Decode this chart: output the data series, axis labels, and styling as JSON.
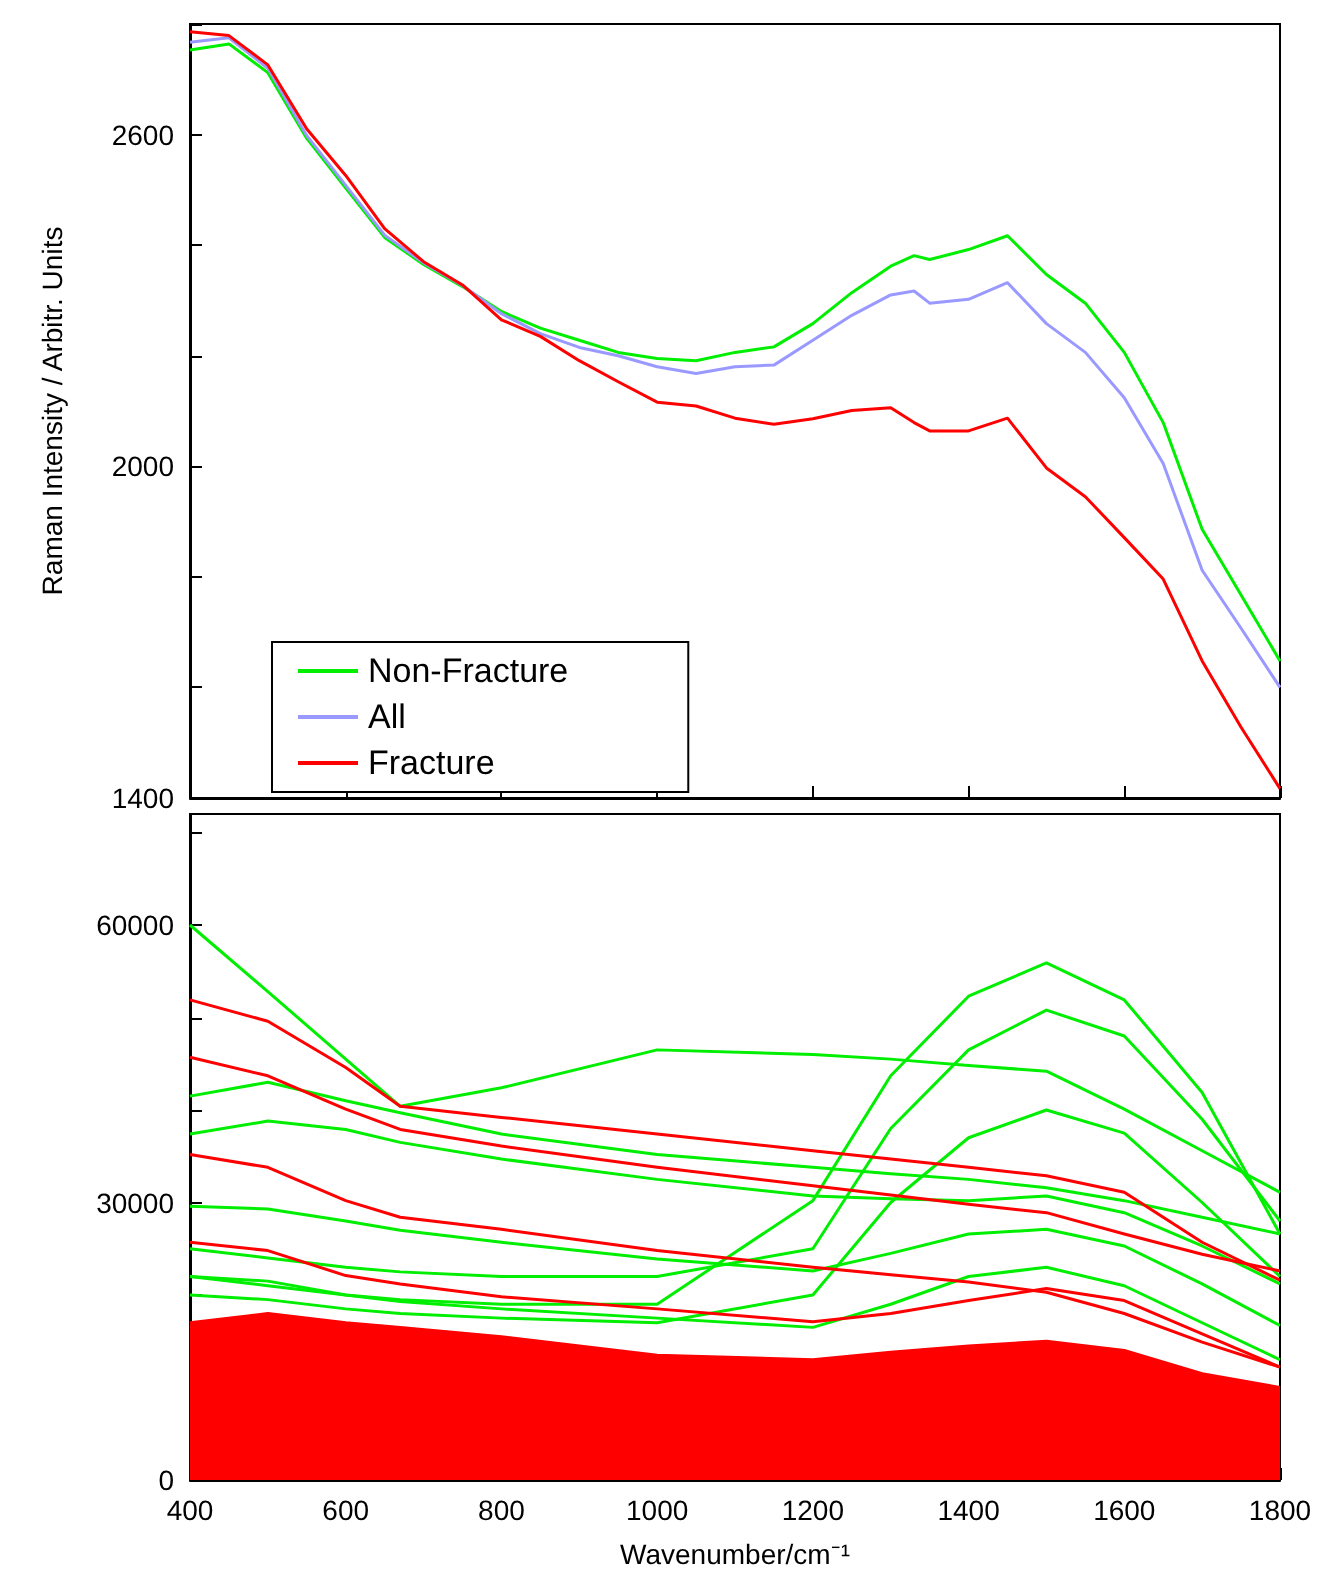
{
  "chart_data": [
    {
      "type": "line",
      "ylabel": "Raman Intensity / Arbitr. Units",
      "x": [
        400,
        450,
        500,
        550,
        600,
        650,
        700,
        750,
        800,
        850,
        900,
        950,
        1000,
        1050,
        1100,
        1150,
        1200,
        1250,
        1300,
        1330,
        1350,
        1400,
        1450,
        1500,
        1550,
        1600,
        1650,
        1700,
        1750,
        1800
      ],
      "xlim": [
        400,
        1800
      ],
      "xticks": [
        400,
        600,
        800,
        1000,
        1200,
        1400,
        1600,
        1800
      ],
      "ylim": [
        1400,
        2800
      ],
      "yticks": [
        1400,
        {
          "value": 1600,
          "label": null
        },
        {
          "value": 1800,
          "label": null
        },
        2000,
        {
          "value": 2200,
          "label": null
        },
        {
          "value": 2400,
          "label": null
        },
        2600,
        {
          "value": 2800,
          "label": null
        }
      ],
      "tick_labels": "y",
      "grid": false,
      "legend": "bottom left",
      "series": [
        {
          "name": "Non-Fracture",
          "color": "#00ee00",
          "values": [
            2753,
            2764,
            2712,
            2593,
            2503,
            2414,
            2365,
            2325,
            2280,
            2250,
            2228,
            2206,
            2195,
            2191,
            2206,
            2216,
            2258,
            2314,
            2362,
            2381,
            2374,
            2392,
            2417,
            2347,
            2295,
            2206,
            2079,
            1886,
            1767,
            1648
          ]
        },
        {
          "name": "All",
          "color": "#9999ff",
          "values": [
            2767,
            2775,
            2720,
            2598,
            2508,
            2418,
            2368,
            2327,
            2276,
            2240,
            2215,
            2200,
            2180,
            2168,
            2180,
            2183,
            2228,
            2273,
            2310,
            2317,
            2295,
            2302,
            2332,
            2258,
            2206,
            2124,
            2005,
            1812,
            1707,
            1600
          ]
        },
        {
          "name": "Fracture",
          "color": "#ff0000",
          "values": [
            2786,
            2779,
            2726,
            2610,
            2526,
            2430,
            2370,
            2328,
            2265,
            2235,
            2191,
            2153,
            2116,
            2109,
            2087,
            2076,
            2086,
            2101,
            2106,
            2079,
            2064,
            2064,
            2087,
            1997,
            1945,
            1871,
            1796,
            1648,
            1528,
            1417
          ]
        }
      ]
    },
    {
      "type": "line",
      "xlabel": "Wavenumber/cm⁻¹",
      "x": [
        400,
        500,
        600,
        670,
        800,
        1000,
        1200,
        1300,
        1400,
        1500,
        1600,
        1700,
        1800
      ],
      "xlim": [
        400,
        1800
      ],
      "xticks": [
        400,
        600,
        800,
        1000,
        1200,
        1400,
        1600,
        1800
      ],
      "ylim": [
        0,
        72000
      ],
      "yticks": [
        0,
        {
          "value": 10000,
          "label": null
        },
        {
          "value": 20000,
          "label": null
        },
        30000,
        {
          "value": 40000,
          "label": null
        },
        {
          "value": 50000,
          "label": null
        },
        60000,
        {
          "value": 70000,
          "label": null
        }
      ],
      "grid": false,
      "legend": false,
      "series": [
        {
          "type": "area",
          "color": "#ff0000",
          "values": [
            17000,
            18000,
            17000,
            16500,
            15500,
            13500,
            13000,
            13800,
            14500,
            15000,
            14000,
            11500,
            10000
          ]
        },
        {
          "color": "#00ee00",
          "values": [
            60000,
            52800,
            45500,
            40400,
            42400,
            46500,
            46000,
            45500,
            44800,
            44200,
            40100,
            35600,
            31100
          ]
        },
        {
          "color": "#00ee00",
          "values": [
            22000,
            21000,
            20000,
            19500,
            19000,
            19000,
            30200,
            43700,
            52300,
            55900,
            51900,
            41900,
            26600
          ]
        },
        {
          "color": "#00ee00",
          "values": [
            25000,
            24000,
            23000,
            22500,
            22000,
            22000,
            25000,
            38000,
            46500,
            50800,
            48000,
            39000,
            28000
          ]
        },
        {
          "color": "#00ee00",
          "values": [
            20000,
            19500,
            18500,
            18000,
            17500,
            17000,
            20000,
            30000,
            37000,
            40000,
            37500,
            30000,
            22000
          ]
        },
        {
          "color": "#00ee00",
          "values": [
            41500,
            43000,
            41000,
            39700,
            37400,
            35200,
            33800,
            33100,
            32500,
            31600,
            30200,
            28400,
            26600
          ]
        },
        {
          "color": "#00ee00",
          "values": [
            37400,
            38800,
            37900,
            36500,
            34700,
            32500,
            30700,
            30400,
            30200,
            30700,
            28900,
            25300,
            21200
          ]
        },
        {
          "color": "#00ee00",
          "values": [
            29600,
            29300,
            28000,
            27000,
            25700,
            23900,
            22600,
            24500,
            26600,
            27100,
            25300,
            21200,
            16700
          ]
        },
        {
          "color": "#00ee00",
          "values": [
            22000,
            21500,
            20000,
            19300,
            18500,
            17500,
            16500,
            19000,
            22000,
            23000,
            21000,
            17000,
            13000
          ]
        },
        {
          "color": "#ff0000",
          "values": [
            51900,
            49600,
            44600,
            40400,
            39200,
            37400,
            35600,
            34700,
            33800,
            32900,
            31100,
            25700,
            21600
          ]
        },
        {
          "color": "#ff0000",
          "values": [
            45700,
            43700,
            40100,
            37900,
            36100,
            33800,
            31800,
            30800,
            29800,
            28900,
            26600,
            24400,
            22600
          ]
        },
        {
          "color": "#ff0000",
          "values": [
            35200,
            33800,
            30200,
            28400,
            27100,
            24800,
            23000,
            22200,
            21400,
            20300,
            18000,
            14900,
            12200
          ]
        },
        {
          "color": "#ff0000",
          "values": [
            25700,
            24800,
            22100,
            21200,
            19800,
            18500,
            17100,
            18000,
            19400,
            20700,
            19400,
            15800,
            12200
          ]
        }
      ]
    }
  ]
}
